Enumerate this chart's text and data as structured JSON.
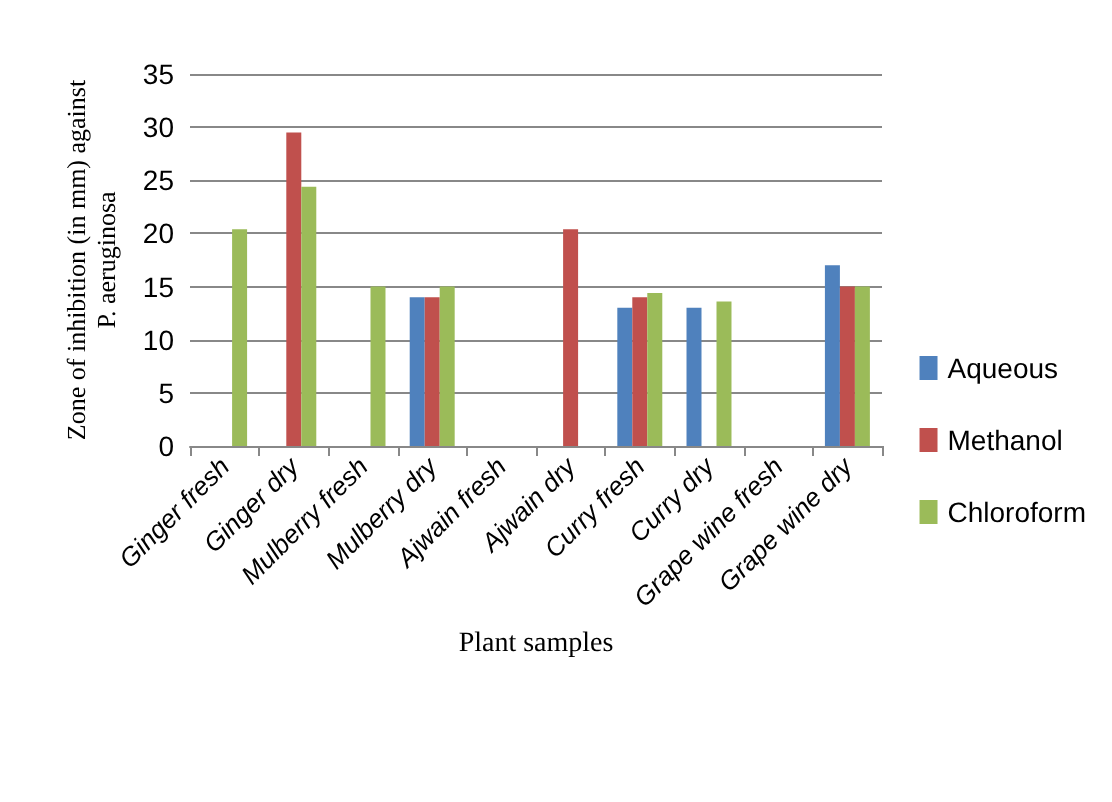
{
  "chart_data": {
    "type": "bar",
    "xlabel": "Plant samples",
    "ylabel": "Zone of inhibition (in mm) against\nP. aeruginosa",
    "categories": [
      "Ginger fresh",
      "Ginger dry",
      "Mulberry fresh",
      "Mulberry dry",
      "Ajwain fresh",
      "Ajwain dry",
      "Curry fresh",
      "Curry dry",
      "Grape wine fresh",
      "Grape wine dry"
    ],
    "series": [
      {
        "name": "Aqueous",
        "color": "#4f81bd",
        "values": [
          null,
          null,
          null,
          14,
          null,
          null,
          13,
          13,
          null,
          17
        ]
      },
      {
        "name": "Methanol",
        "color": "#c0504d",
        "values": [
          null,
          29.5,
          null,
          14,
          null,
          20.4,
          14,
          null,
          null,
          15
        ]
      },
      {
        "name": "Chloroform",
        "color": "#9bbb59",
        "values": [
          20.4,
          24.4,
          15,
          15,
          null,
          null,
          14.4,
          13.6,
          null,
          15
        ]
      }
    ],
    "ylim": [
      0,
      35
    ],
    "yticks": [
      0,
      5,
      10,
      15,
      20,
      25,
      30,
      35
    ],
    "grid": "y",
    "legend": "right"
  }
}
